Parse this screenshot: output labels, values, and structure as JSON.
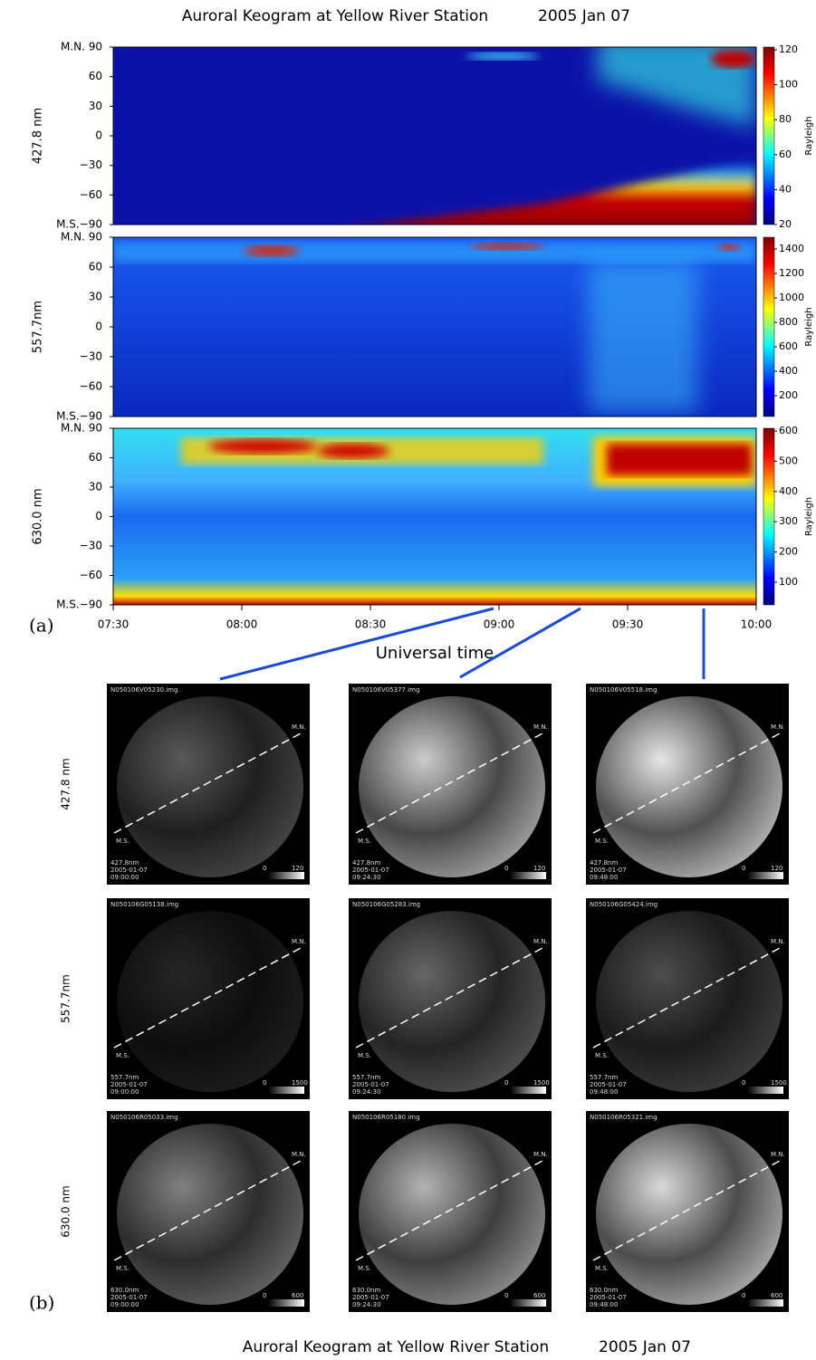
{
  "header": {
    "title": "Auroral Keogram at Yellow River Station",
    "date": "2005 Jan 07"
  },
  "keogram": {
    "label": "(a)",
    "x_axis_title": "Universal time",
    "x_ticks": [
      "07:30",
      "08:00",
      "08:30",
      "09:00",
      "09:30",
      "10:00"
    ],
    "y_ticks": [
      "M.N. 90",
      "60",
      "30",
      "0",
      "−30",
      "−60",
      "M.S.−90"
    ],
    "colorbar_title": "Rayleigh",
    "panels": [
      {
        "wavelength": "427.8 nm",
        "colorbar_ticks": [
          20,
          40,
          60,
          80,
          100,
          120
        ]
      },
      {
        "wavelength": "557.7nm",
        "colorbar_ticks": [
          200,
          400,
          600,
          800,
          1000,
          1200,
          1400
        ]
      },
      {
        "wavelength": "630.0 nm",
        "colorbar_ticks": [
          100,
          200,
          300,
          400,
          500,
          600
        ]
      }
    ]
  },
  "images": {
    "label": "(b)",
    "north": "M.N.",
    "south": "M.S.",
    "date": "2005-01-07",
    "scale_min": 0,
    "times": [
      "09:00:00",
      "09:24:30",
      "09:48:00"
    ],
    "rows": [
      {
        "wavelength": "427.8 nm",
        "caption": "427.8nm",
        "scale_max": 120,
        "files": [
          "N050106V05230.img",
          "N050106V05377.img",
          "N050106V05518.img"
        ]
      },
      {
        "wavelength": "557.7nm",
        "caption": "557.7nm",
        "scale_max": 1500,
        "files": [
          "N050106G05138.img",
          "N050106G05283.img",
          "N050106G05424.img"
        ]
      },
      {
        "wavelength": "630.0 nm",
        "caption": "630.0nm",
        "scale_max": 600,
        "files": [
          "N050106R05033.img",
          "N050106R05180.img",
          "N050106R05321.img"
        ]
      }
    ]
  },
  "footer": {
    "title": "Auroral Keogram at Yellow River Station",
    "date": "2005 Jan 07"
  }
}
